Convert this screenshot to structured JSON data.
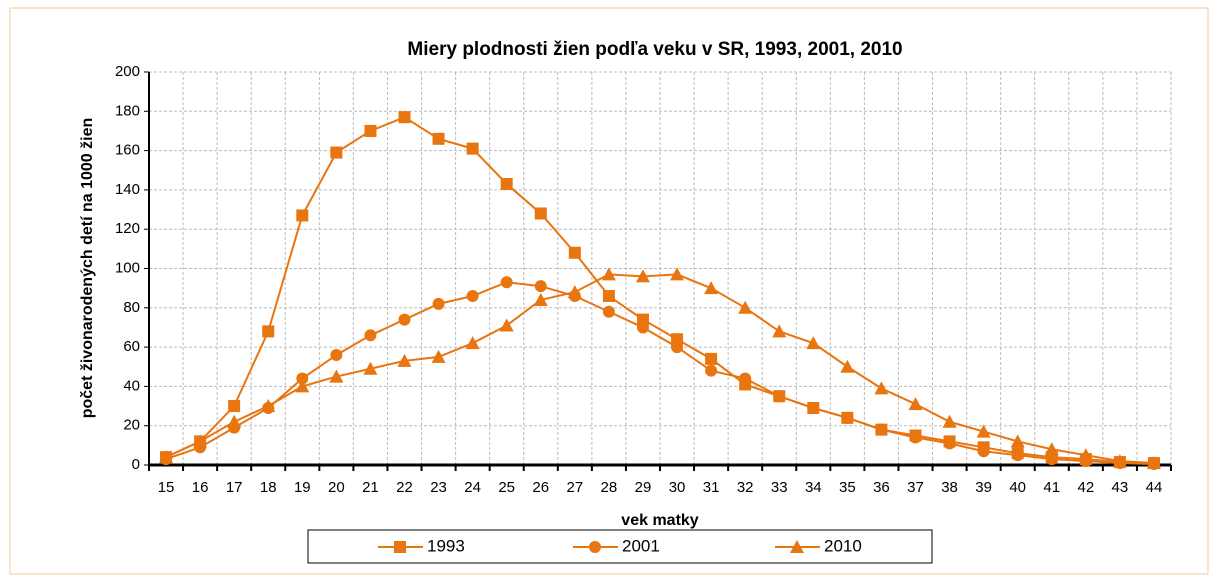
{
  "chart_data": {
    "type": "line",
    "title": "Miery plodnosti žien podľa veku v SR, 1993, 2001, 2010",
    "x_label": "vek matky",
    "y_label": "počet živonarodených detí na 1000 žien",
    "categories": [
      "15",
      "16",
      "17",
      "18",
      "19",
      "20",
      "21",
      "22",
      "23",
      "24",
      "25",
      "26",
      "27",
      "28",
      "29",
      "30",
      "31",
      "32",
      "33",
      "34",
      "35",
      "36",
      "37",
      "38",
      "39",
      "40",
      "41",
      "42",
      "43",
      "44"
    ],
    "series": [
      {
        "name": "1993",
        "color": "#e8750f",
        "marker": "square",
        "values": [
          4,
          12,
          30,
          68,
          127,
          159,
          170,
          177,
          166,
          161,
          143,
          128,
          108,
          86,
          74,
          64,
          54,
          41,
          35,
          29,
          24,
          18,
          15,
          12,
          9,
          6,
          4,
          3,
          1.5,
          1
        ]
      },
      {
        "name": "2001",
        "color": "#e8750f",
        "marker": "circle",
        "values": [
          3,
          9,
          19,
          29,
          44,
          56,
          66,
          74,
          82,
          86,
          93,
          91,
          86,
          78,
          70,
          60,
          48,
          44,
          35,
          29,
          24,
          18,
          14,
          11,
          7,
          5,
          3,
          2,
          1,
          0.5
        ]
      },
      {
        "name": "2010",
        "color": "#e8750f",
        "marker": "triangle",
        "values": [
          4,
          12,
          22,
          30,
          40,
          45,
          49,
          53,
          55,
          62,
          71,
          84,
          88,
          97,
          96,
          97,
          90,
          80,
          68,
          62,
          50,
          39,
          31,
          22,
          17,
          12,
          8,
          5,
          2,
          1
        ]
      }
    ],
    "ylim": [
      0,
      200
    ],
    "yticks": [
      0,
      20,
      40,
      60,
      80,
      100,
      120,
      140,
      160,
      180,
      200
    ],
    "grid": true,
    "legend": "bottom"
  }
}
